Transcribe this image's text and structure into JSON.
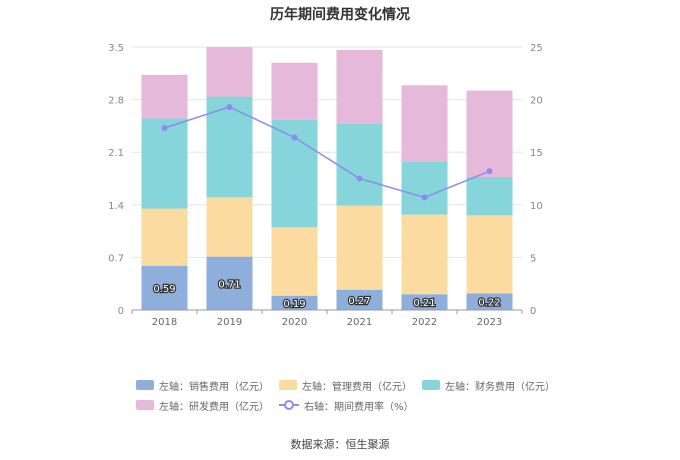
{
  "source_text": "数据来源：恒生聚源",
  "chart_data": {
    "type": "bar",
    "title": "历年期间费用变化情况",
    "categories": [
      "2018",
      "2019",
      "2020",
      "2021",
      "2022",
      "2023"
    ],
    "stacked": true,
    "series": [
      {
        "name": "左轴：销售费用（亿元）",
        "axis": "left",
        "type": "bar",
        "color": "#8eaedc",
        "values": [
          0.59,
          0.71,
          0.19,
          0.27,
          0.21,
          0.22
        ],
        "labels": [
          "0.59",
          "0.71",
          "0.19",
          "0.27",
          "0.21",
          "0.22"
        ]
      },
      {
        "name": "左轴：管理费用（亿元）",
        "axis": "left",
        "type": "bar",
        "color": "#fcdba0",
        "values": [
          0.76,
          0.79,
          0.91,
          1.12,
          1.06,
          1.04
        ]
      },
      {
        "name": "左轴：财务费用（亿元）",
        "axis": "left",
        "type": "bar",
        "color": "#86d5da",
        "values": [
          1.2,
          1.34,
          1.43,
          1.09,
          0.7,
          0.51
        ]
      },
      {
        "name": "左轴：研发费用（亿元）",
        "axis": "left",
        "type": "bar",
        "color": "#e6b8da",
        "values": [
          0.58,
          0.66,
          0.76,
          0.98,
          1.02,
          1.15
        ]
      },
      {
        "name": "右轴：期间费用率（%）",
        "axis": "right",
        "type": "line",
        "color": "#8c8cf0",
        "values": [
          17.3,
          19.3,
          16.4,
          12.5,
          10.7,
          13.2
        ]
      }
    ],
    "left_axis": {
      "ylim": [
        0,
        3.5
      ],
      "ticks": [
        "0",
        "0.7",
        "1.4",
        "2.1",
        "2.8",
        "3.5"
      ]
    },
    "right_axis": {
      "ylim": [
        0,
        25
      ],
      "ticks": [
        "0",
        "5",
        "10",
        "15",
        "20",
        "25"
      ]
    },
    "legend_position": "bottom",
    "grid": true
  }
}
